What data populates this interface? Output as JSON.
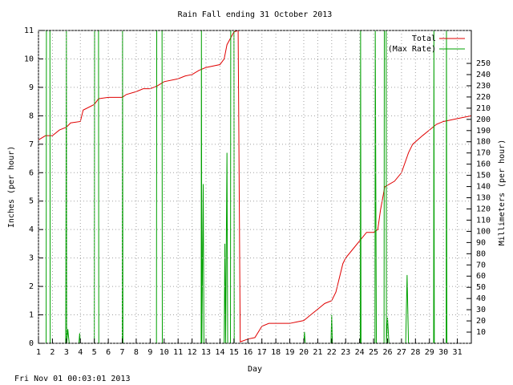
{
  "chart_data": {
    "type": "line",
    "title": "Rain Fall ending 31 October 2013",
    "x_label": "Day",
    "y_label": "Inches (per hour)",
    "y2_label": "Millimeters (per hour)",
    "footer": "Fri Nov 01 00:03:01 2013",
    "xlim": [
      1,
      32
    ],
    "xticks": [
      1,
      2,
      3,
      4,
      5,
      6,
      7,
      8,
      9,
      10,
      11,
      12,
      13,
      14,
      15,
      16,
      17,
      18,
      19,
      20,
      21,
      22,
      23,
      24,
      25,
      26,
      27,
      28,
      29,
      30,
      31
    ],
    "ylim": [
      0,
      11
    ],
    "yticks": [
      0,
      1,
      2,
      3,
      4,
      5,
      6,
      7,
      8,
      9,
      10,
      11
    ],
    "y2lim": [
      0,
      279.4
    ],
    "y2ticks": [
      10,
      20,
      30,
      40,
      50,
      60,
      70,
      80,
      90,
      100,
      110,
      120,
      130,
      140,
      150,
      160,
      170,
      180,
      190,
      200,
      210,
      220,
      230,
      240,
      250
    ],
    "grid": true,
    "legend": "top-right",
    "series": [
      {
        "name": "Total",
        "color": "#e00000",
        "x": [
          1,
          1.5,
          2,
          2.5,
          3,
          3.3,
          4,
          4.2,
          5,
          5.3,
          6,
          7,
          7.3,
          8,
          8.5,
          9,
          9.5,
          10,
          11,
          11.5,
          12,
          12.5,
          13,
          14,
          14.3,
          14.5,
          15,
          15.3,
          15.45,
          16,
          16.5,
          17,
          17.5,
          19,
          19.5,
          20,
          20.5,
          21,
          21.5,
          22,
          22.3,
          22.5,
          22.8,
          23,
          23.5,
          24,
          24.5,
          25,
          25.3,
          25.5,
          25.8,
          26.5,
          27,
          27.5,
          27.8,
          28.5,
          29,
          29.5,
          30,
          31,
          32
        ],
        "values": [
          7.15,
          7.3,
          7.3,
          7.5,
          7.6,
          7.75,
          7.8,
          8.2,
          8.4,
          8.6,
          8.65,
          8.65,
          8.75,
          8.85,
          8.95,
          8.95,
          9.05,
          9.2,
          9.3,
          9.4,
          9.45,
          9.6,
          9.7,
          9.8,
          10.0,
          10.5,
          10.95,
          11.0,
          0.05,
          0.15,
          0.2,
          0.6,
          0.7,
          0.7,
          0.75,
          0.8,
          1.0,
          1.2,
          1.4,
          1.5,
          1.8,
          2.2,
          2.8,
          3.0,
          3.3,
          3.6,
          3.9,
          3.9,
          4.0,
          4.7,
          5.5,
          5.7,
          6.0,
          6.7,
          7.0,
          7.3,
          7.5,
          7.7,
          7.8,
          7.9,
          8.0
        ]
      },
      {
        "name": "(Max Rate)",
        "color": "#00a000",
        "x": [
          1,
          1.55,
          1.57,
          1.82,
          1.84,
          2.95,
          3.0,
          3.02,
          3.1,
          3.2,
          3.9,
          3.95,
          4.0,
          5.0,
          5.02,
          5.3,
          5.32,
          7.0,
          7.02,
          7.05,
          9.45,
          9.47,
          9.85,
          9.87,
          12.65,
          12.67,
          12.7,
          12.8,
          12.85,
          14.3,
          14.35,
          14.4,
          14.5,
          14.55,
          14.75,
          14.77,
          15.0,
          15.02,
          20,
          20.05,
          20.1,
          21.95,
          22.0,
          22.05,
          24.05,
          24.07,
          24.1,
          25.1,
          25.12,
          25.2,
          25.75,
          25.77,
          25.9,
          25.92,
          26.0,
          26.1,
          27.3,
          27.4,
          27.5,
          29.3,
          29.32,
          29.35,
          30.2,
          30.22,
          30.25,
          32
        ],
        "values": [
          0,
          0,
          11,
          11,
          0,
          0,
          11,
          0,
          0.5,
          0,
          0,
          0.35,
          0,
          0,
          11,
          11,
          0,
          0,
          11,
          0,
          0,
          11,
          11,
          0,
          0,
          11,
          0,
          5.6,
          0,
          0,
          3.5,
          0,
          6.7,
          0,
          0,
          11,
          11,
          0,
          0,
          0.4,
          0,
          0,
          1.0,
          0,
          0,
          11,
          0,
          0,
          11,
          0,
          0,
          11,
          11,
          0,
          0.9,
          0,
          0,
          2.4,
          0,
          0,
          11,
          0,
          0,
          11,
          0,
          0
        ]
      }
    ]
  }
}
